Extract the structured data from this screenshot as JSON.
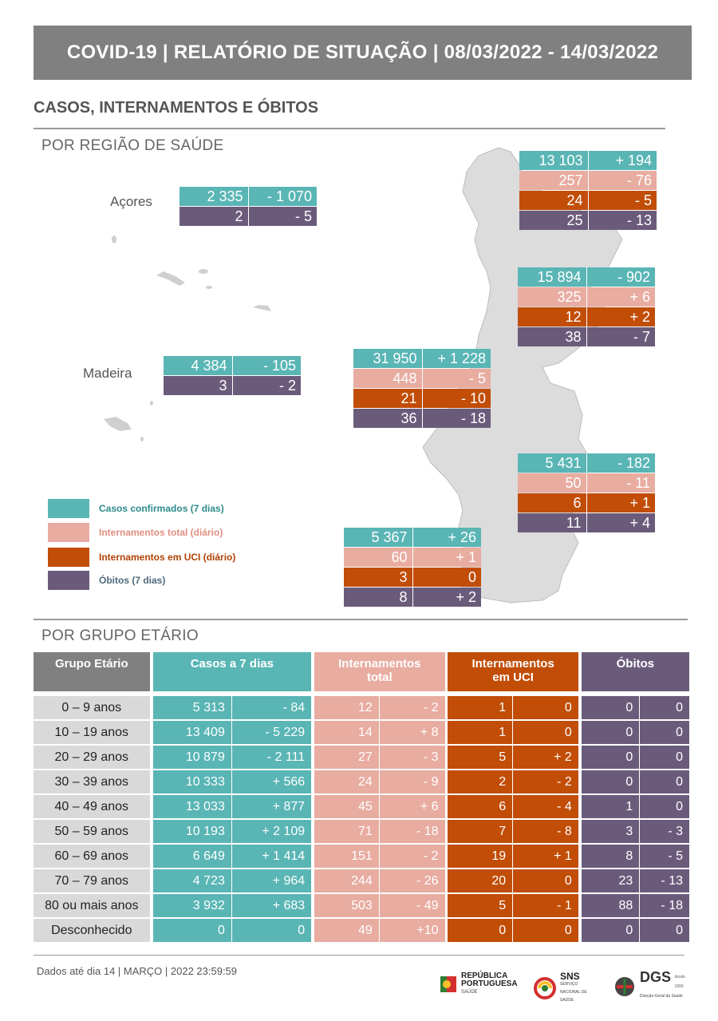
{
  "header": {
    "title": "COVID-19 | RELATÓRIO DE SITUAÇÃO | 08/03/2022 - 14/03/2022"
  },
  "section": {
    "title": "CASOS, INTERNAMENTOS E ÓBITOS",
    "by_region": "POR REGIÃO DE SAÚDE",
    "by_age": "POR GRUPO ETÁRIO"
  },
  "islands": {
    "acores": "Açores",
    "madeira": "Madeira"
  },
  "regions": {
    "acores": {
      "cases": "2 335",
      "cases_delta": "- 1 070",
      "deaths": "2",
      "deaths_delta": "- 5"
    },
    "madeira": {
      "cases": "4 384",
      "cases_delta": "- 105",
      "deaths": "3",
      "deaths_delta": "- 2"
    },
    "norte": {
      "cases": "13 103",
      "cases_delta": "+ 194",
      "hosp": "257",
      "hosp_delta": "- 76",
      "icu": "24",
      "icu_delta": "- 5",
      "deaths": "25",
      "deaths_delta": "- 13"
    },
    "centro": {
      "cases": "15 894",
      "cases_delta": "- 902",
      "hosp": "325",
      "hosp_delta": "+ 6",
      "icu": "12",
      "icu_delta": "+ 2",
      "deaths": "38",
      "deaths_delta": "- 7"
    },
    "lvt": {
      "cases": "31 950",
      "cases_delta": "+ 1 228",
      "hosp": "448",
      "hosp_delta": "- 5",
      "icu": "21",
      "icu_delta": "- 10",
      "deaths": "36",
      "deaths_delta": "- 18"
    },
    "alentejo": {
      "cases": "5 431",
      "cases_delta": "- 182",
      "hosp": "50",
      "hosp_delta": "- 11",
      "icu": "6",
      "icu_delta": "+ 1",
      "deaths": "11",
      "deaths_delta": "+ 4"
    },
    "algarve": {
      "cases": "5 367",
      "cases_delta": "+ 26",
      "hosp": "60",
      "hosp_delta": "+ 1",
      "icu": "3",
      "icu_delta": "0",
      "deaths": "8",
      "deaths_delta": "+ 2"
    }
  },
  "legend": {
    "cases": "Casos confirmados (7 dias)",
    "hosp": "Internamentos total (diário)",
    "icu": "Internamentos em UCI (diário)",
    "deaths": "Óbitos (7 dias)"
  },
  "age_table": {
    "headers": {
      "group": "Grupo Etário",
      "cases": "Casos a 7 dias",
      "hosp_1": "Internamentos",
      "hosp_2": "total",
      "icu_1": "Internamentos",
      "icu_2": "em UCI",
      "deaths": "Óbitos"
    },
    "rows": [
      [
        "0 – 9 anos",
        "5 313",
        "- 84",
        "12",
        "- 2",
        "1",
        "0",
        "0",
        "0"
      ],
      [
        "10 – 19 anos",
        "13 409",
        "- 5 229",
        "14",
        "+ 8",
        "1",
        "0",
        "0",
        "0"
      ],
      [
        "20 – 29 anos",
        "10 879",
        "- 2 111",
        "27",
        "- 3",
        "5",
        "+ 2",
        "0",
        "0"
      ],
      [
        "30 – 39 anos",
        "10 333",
        "+ 566",
        "24",
        "- 9",
        "2",
        "- 2",
        "0",
        "0"
      ],
      [
        "40 – 49 anos",
        "13 033",
        "+ 877",
        "45",
        "+ 6",
        "6",
        "- 4",
        "1",
        "0"
      ],
      [
        "50 – 59 anos",
        "10 193",
        "+ 2 109",
        "71",
        "- 18",
        "7",
        "- 8",
        "3",
        "- 3"
      ],
      [
        "60 – 69 anos",
        "6 649",
        "+ 1 414",
        "151",
        "- 2",
        "19",
        "+ 1",
        "8",
        "- 5"
      ],
      [
        "70 – 79 anos",
        "4 723",
        "+ 964",
        "244",
        "- 26",
        "20",
        "0",
        "23",
        "- 13"
      ],
      [
        "80 ou mais anos",
        "3 932",
        "+ 683",
        "503",
        "- 49",
        "5",
        "- 1",
        "88",
        "- 18"
      ],
      [
        "Desconhecido",
        "0",
        "0",
        "49",
        "+10",
        "0",
        "0",
        "0",
        "0"
      ]
    ]
  },
  "footer": {
    "text": "Dados até dia 14 | MARÇO | 2022 23:59:59"
  },
  "logos": {
    "republica_1": "REPÚBLICA",
    "republica_2": "PORTUGUESA",
    "republica_3": "SAÚDE",
    "sns": "SNS",
    "sns_sub": "SERVIÇO NACIONAL DE SAÚDE",
    "dgs": "DGS",
    "dgs_sub": "Direção-Geral da Saúde",
    "dgs_since": "desde 1899"
  },
  "colors": {
    "cases": "#5ab5b5",
    "hosp": "#e8aca1",
    "icu": "#c14d07",
    "deaths": "#6b5b7b",
    "header_bg": "#808080"
  }
}
